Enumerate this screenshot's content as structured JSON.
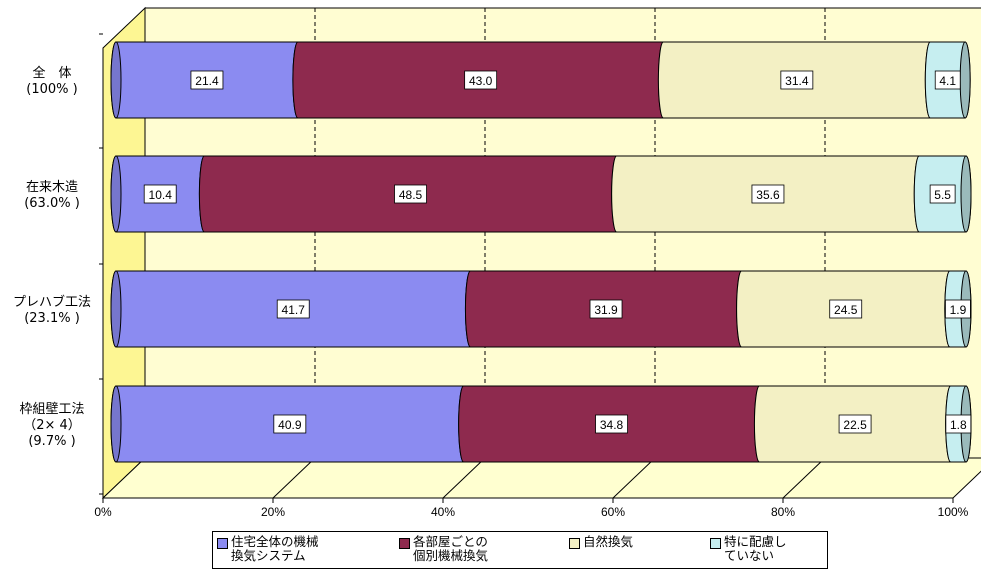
{
  "chart_data": {
    "type": "bar",
    "orientation": "horizontal",
    "stacked": true,
    "percent_scale": true,
    "style": "3d-cylinder",
    "categories": [
      [
        "全　体",
        "(100% )"
      ],
      [
        "在来木造",
        "(63.0% )"
      ],
      [
        "プレハブ工法",
        "(23.1% )"
      ],
      [
        "枠組壁工法",
        "（2× 4）",
        "(9.7% )"
      ]
    ],
    "series": [
      {
        "name": "住宅全体の機械\n換気システム",
        "color": "#8b8bf1",
        "values": [
          21.4,
          10.4,
          41.7,
          40.9
        ]
      },
      {
        "name": "各部屋ごとの\n個別機械換気",
        "color": "#8e2a4e",
        "values": [
          43.0,
          48.5,
          31.9,
          34.8
        ]
      },
      {
        "name": "自然換気",
        "color": "#f3f0c4",
        "values": [
          31.4,
          35.6,
          24.5,
          22.5
        ]
      },
      {
        "name": "特に配慮し\nていない",
        "color": "#c6eef0",
        "values": [
          4.1,
          5.5,
          1.9,
          1.8
        ]
      }
    ],
    "x_ticks": [
      "0%",
      "20%",
      "40%",
      "60%",
      "80%",
      "100%"
    ],
    "xlim": [
      0,
      100
    ],
    "grid": true,
    "gridline_style": "dashed",
    "legend_position": "bottom",
    "wall_color": "#fffdd2",
    "floor_color": "#ffffd0",
    "side_wall_color": "#fdf693"
  }
}
